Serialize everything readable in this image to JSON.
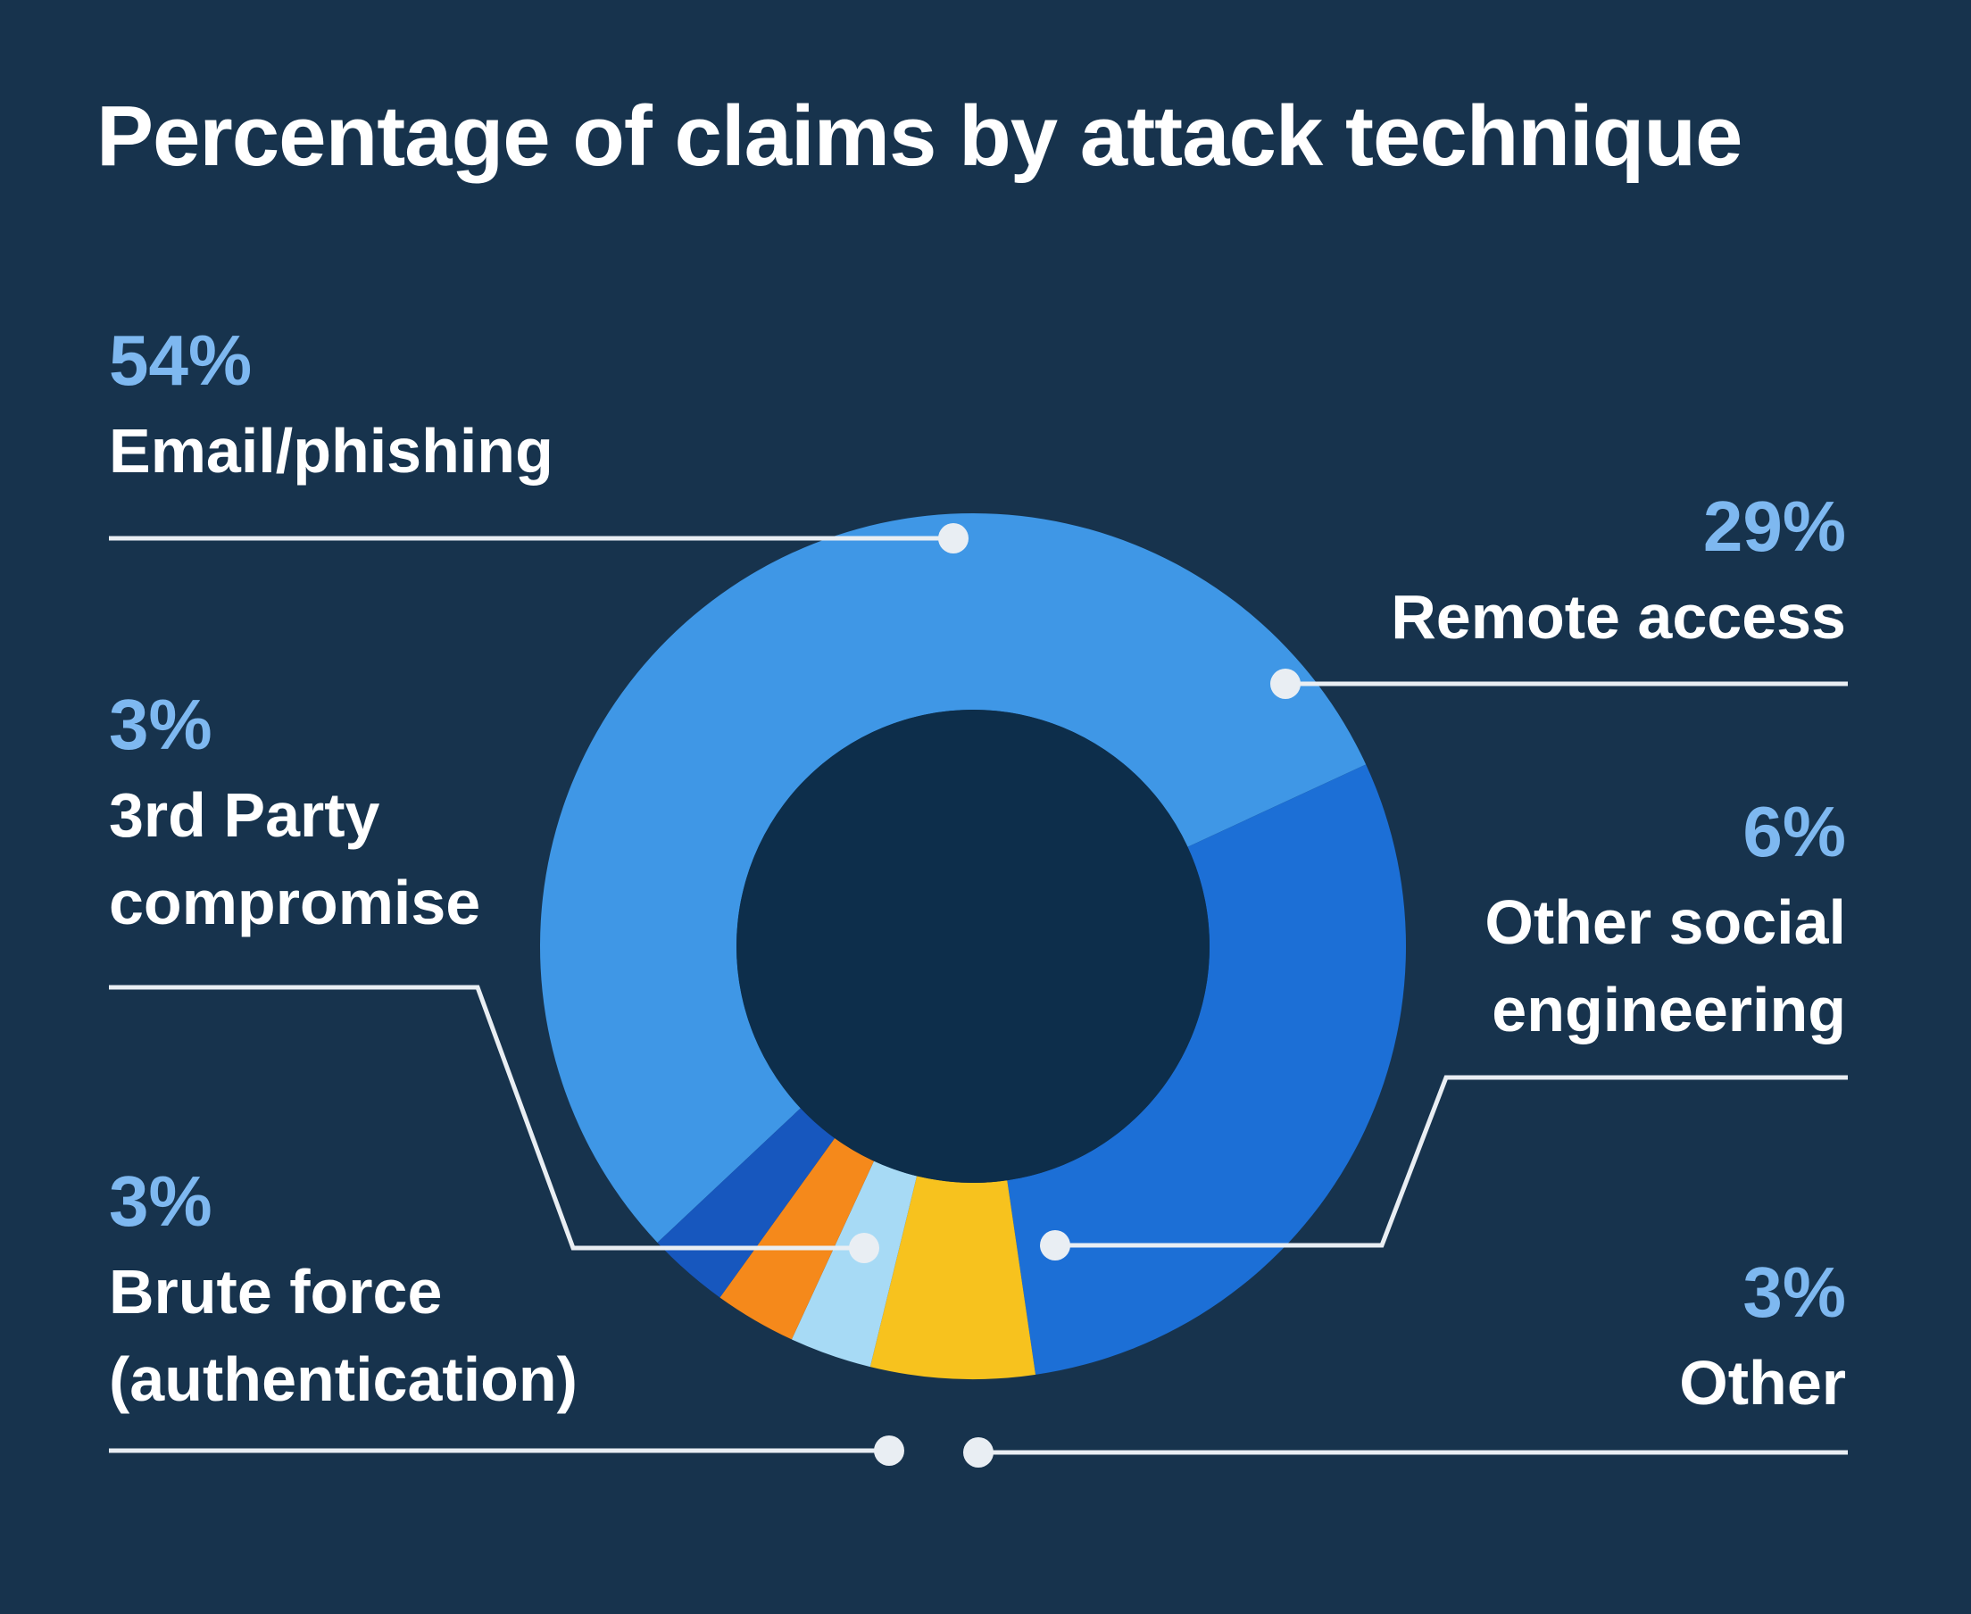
{
  "chart_data": {
    "type": "pie",
    "variant": "donut",
    "title": "Percentage of claims by attack technique",
    "segments": [
      {
        "label": "Email/phishing",
        "value": 54,
        "display": "54%",
        "color": "#3f97e6"
      },
      {
        "label": "Remote access",
        "value": 29,
        "display": "29%",
        "color": "#1c6fd6"
      },
      {
        "label": "Other social engineering",
        "value": 6,
        "display": "6%",
        "color": "#f7c21e"
      },
      {
        "label": "Other",
        "value": 3,
        "display": "3%",
        "color": "#a7daf5"
      },
      {
        "label": "Brute force (authentication)",
        "value": 3,
        "display": "3%",
        "color": "#f5891b"
      },
      {
        "label": "3rd Party compromise",
        "value": 3,
        "display": "3%",
        "color": "#1757be"
      }
    ],
    "legend_placement": "labels around chart with leader lines",
    "grid": false
  },
  "labels": {
    "email": {
      "pct": "54%",
      "name_lines": [
        "Email/phishing"
      ]
    },
    "remote": {
      "pct": "29%",
      "name_lines": [
        "Remote access"
      ]
    },
    "third_party": {
      "pct": "3%",
      "name_lines": [
        "3rd Party",
        "compromise"
      ]
    },
    "social": {
      "pct": "6%",
      "name_lines": [
        "Other social",
        "engineering"
      ]
    },
    "brute": {
      "pct": "3%",
      "name_lines": [
        "Brute force",
        "(authentication)"
      ]
    },
    "other": {
      "pct": "3%",
      "name_lines": [
        "Other"
      ]
    }
  },
  "colors": {
    "background": "#17334d",
    "hole": "#0d2e4b",
    "percent_text": "#7eb8f0",
    "leader_line": "#e9eef3"
  }
}
